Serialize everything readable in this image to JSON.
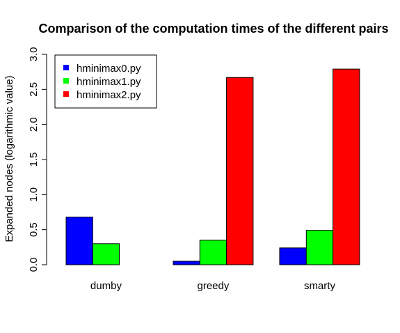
{
  "chart_data": {
    "type": "bar",
    "title": "Comparison of the computation times of the different pairs",
    "xlabel": "",
    "ylabel": "Expanded nodes (logarithmic value)",
    "categories": [
      "dumby",
      "greedy",
      "smarty"
    ],
    "series": [
      {
        "name": "hminimax0.py",
        "color": "#0000ff",
        "values": [
          0.68,
          0.05,
          0.24
        ]
      },
      {
        "name": "hminimax1.py",
        "color": "#00ff00",
        "values": [
          0.3,
          0.35,
          0.49
        ]
      },
      {
        "name": "hminimax2.py",
        "color": "#ff0000",
        "values": [
          null,
          2.67,
          2.79
        ]
      }
    ],
    "ylim": [
      0,
      3.0
    ],
    "yticks": [
      "0.0",
      "0.5",
      "1.0",
      "1.5",
      "2.0",
      "2.5",
      "3.0"
    ],
    "ytick_values": [
      0,
      0.5,
      1.0,
      1.5,
      2.0,
      2.5,
      3.0
    ],
    "grid": false,
    "legend_position": "top-left"
  }
}
